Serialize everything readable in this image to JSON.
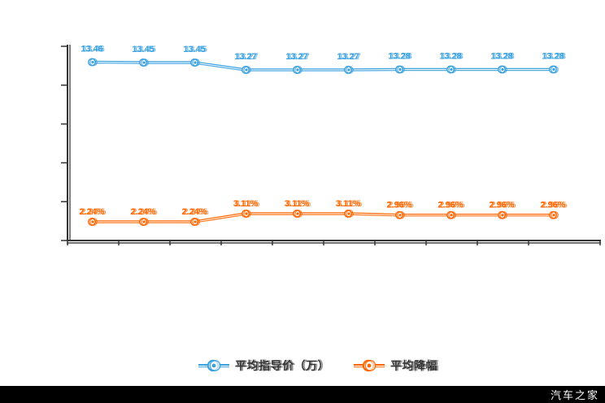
{
  "legend": {
    "items": [
      {
        "label": "平均指导价（万）",
        "color": "#3aa1e0"
      },
      {
        "label": "平均降幅",
        "color": "#ff6600"
      }
    ]
  },
  "watermark": {
    "brand": "汽车之家"
  },
  "colors": {
    "axis": "#333333",
    "background": "#ffffff",
    "bottom_bar": "#000000",
    "series_blue": "#3aa1e0",
    "series_orange": "#ff6600"
  },
  "chart_data": {
    "type": "line",
    "title": "",
    "xlabel": "",
    "ylabel": "",
    "grid": false,
    "legend_position": "bottom-center",
    "axes": {
      "y_axis_labels_visible": false,
      "x_axis_labels_visible": false,
      "y_tick_count": 6,
      "x_tick_count": 11
    },
    "series": [
      {
        "name": "平均指导价（万）",
        "color": "#3aa1e0",
        "unit": "万",
        "values": [
          13.46,
          13.45,
          13.45,
          13.27,
          13.27,
          13.27,
          13.28,
          13.28,
          13.28,
          13.28
        ],
        "labels": [
          "13.46",
          "13.45",
          "13.45",
          "13.27",
          "13.27",
          "13.27",
          "13.28",
          "13.28",
          "13.28",
          "13.28"
        ]
      },
      {
        "name": "平均降幅",
        "color": "#ff6600",
        "unit": "%",
        "values": [
          2.24,
          2.24,
          2.24,
          3.11,
          3.11,
          3.11,
          2.96,
          2.96,
          2.96,
          2.96
        ],
        "labels": [
          "2.24%",
          "2.24%",
          "2.24%",
          "3.11%",
          "3.11%",
          "3.11%",
          "2.96%",
          "2.96%",
          "2.96%",
          "2.96%"
        ]
      }
    ]
  }
}
